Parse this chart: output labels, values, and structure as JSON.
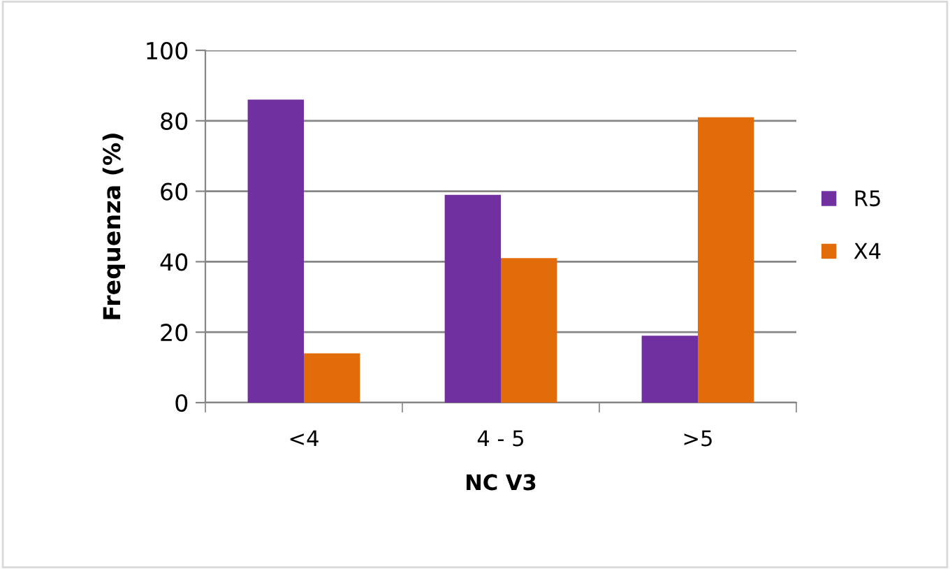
{
  "chart_data": {
    "type": "bar",
    "xlabel": "NC V3",
    "ylabel": "Frequenza (%)",
    "categories": [
      "<4",
      "4 - 5",
      ">5"
    ],
    "series": [
      {
        "name": "R5",
        "color": "#7030a0",
        "values": [
          86,
          59,
          19
        ]
      },
      {
        "name": "X4",
        "color": "#e36c0a",
        "values": [
          14,
          41,
          81
        ]
      }
    ],
    "ylim": [
      0,
      100
    ],
    "yticks": [
      0,
      20,
      40,
      60,
      80,
      100
    ],
    "grid": "y",
    "legend": "right"
  }
}
